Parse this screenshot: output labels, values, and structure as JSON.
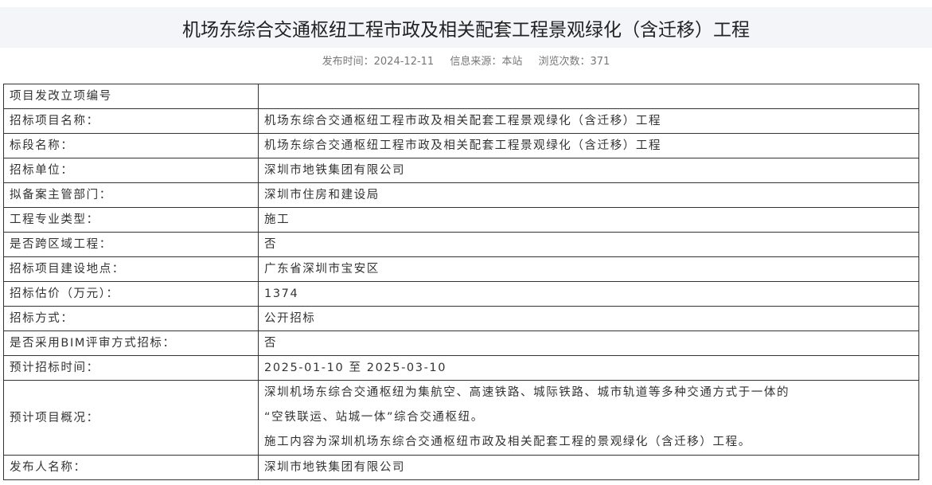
{
  "header": {
    "title": "机场东综合交通枢纽工程市政及相关配套工程景观绿化（含迁移）工程",
    "publish_time": "发布时间：2024-12-11",
    "source": "信息来源：本站",
    "views": "浏览次数：371"
  },
  "rows": [
    {
      "label": "项目发改立项编号",
      "value": ""
    },
    {
      "label": "招标项目名称：",
      "value": "机场东综合交通枢纽工程市政及相关配套工程景观绿化（含迁移）工程"
    },
    {
      "label": "标段名称：",
      "value": "机场东综合交通枢纽工程市政及相关配套工程景观绿化（含迁移）工程"
    },
    {
      "label": "招标单位：",
      "value": "深圳市地铁集团有限公司"
    },
    {
      "label": "拟备案主管部门：",
      "value": "深圳市住房和建设局"
    },
    {
      "label": "工程专业类型：",
      "value": "施工"
    },
    {
      "label": "是否跨区域工程：",
      "value": "否"
    },
    {
      "label": "招标项目建设地点：",
      "value": "广东省深圳市宝安区"
    },
    {
      "label": "招标估价（万元）：",
      "value": "1374"
    },
    {
      "label": "招标方式：",
      "value": "公开招标"
    },
    {
      "label": "是否采用BIM评审方式招标：",
      "value": "否"
    },
    {
      "label": "预计招标时间：",
      "value": "2025-01-10 至 2025-03-10"
    },
    {
      "label": "预计项目概况：",
      "lines": [
        "深圳机场东综合交通枢纽为集航空、高速铁路、城际铁路、城市轨道等多种交通方式于一体的",
        "“空铁联运、站城一体”综合交通枢纽。",
        "施工内容为深圳机场东综合交通枢纽市政及相关配套工程的景观绿化（含迁移）工程。"
      ]
    },
    {
      "label": "发布人名称：",
      "value": "深圳市地铁集团有限公司"
    }
  ]
}
